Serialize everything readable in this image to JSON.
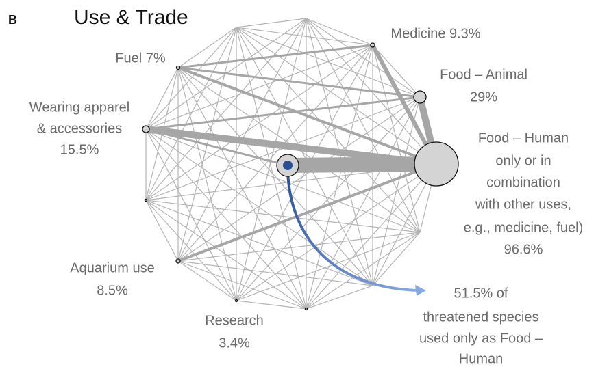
{
  "panel": "B",
  "title": "Use & Trade",
  "nodes": [
    {
      "lines": [
        "Medicine 9.3%"
      ]
    },
    {
      "lines": [
        "Food – Animal",
        "29%"
      ]
    },
    {
      "lines": [
        "Food – Human",
        "only or in",
        "combination",
        "with other uses,",
        "e.g., medicine, fuel)",
        "96.6%"
      ]
    },
    {
      "lines": [
        "Fuel 7%"
      ]
    },
    {
      "lines": [
        "Wearing apparel",
        "& accessories",
        "15.5%"
      ]
    },
    {
      "lines": [
        "Aquarium use",
        "8.5%"
      ]
    },
    {
      "lines": [
        "Research",
        "3.4%"
      ]
    }
  ],
  "annotation": [
    "51.5% of",
    "threatened species",
    "used only as Food –",
    "Human"
  ]
}
